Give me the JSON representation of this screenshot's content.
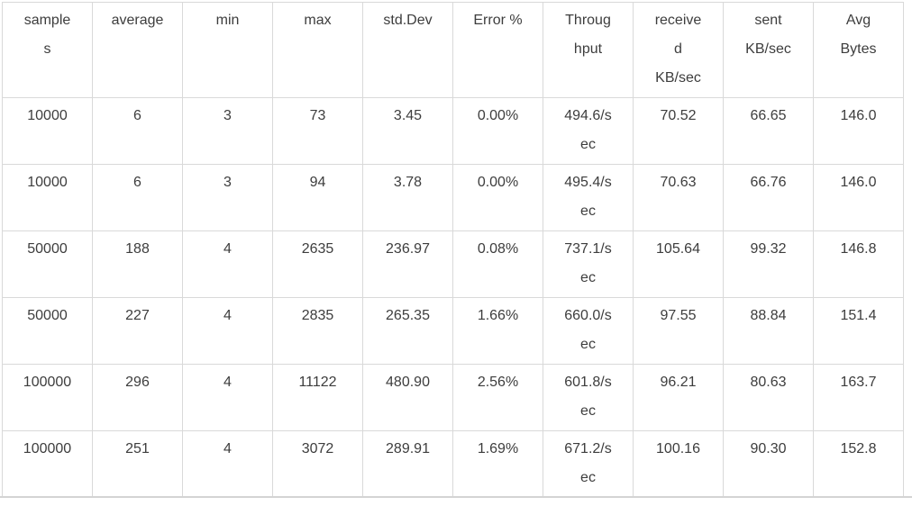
{
  "table": {
    "columns": [
      {
        "key": "samples",
        "label": "samples"
      },
      {
        "key": "average",
        "label": "average"
      },
      {
        "key": "min",
        "label": "min"
      },
      {
        "key": "max",
        "label": "max"
      },
      {
        "key": "std-dev",
        "label": "std.Dev"
      },
      {
        "key": "error-pct",
        "label": "Error %"
      },
      {
        "key": "throughput",
        "label": "Throughput"
      },
      {
        "key": "received-kb",
        "label": "received KB/sec"
      },
      {
        "key": "sent-kb",
        "label": "sent KB/sec"
      },
      {
        "key": "avg-bytes",
        "label": "Avg Bytes"
      }
    ],
    "rows": [
      [
        "10000",
        "6",
        "3",
        "73",
        "3.45",
        "0.00%",
        "494.6/sec",
        "70.52",
        "66.65",
        "146.0"
      ],
      [
        "10000",
        "6",
        "3",
        "94",
        "3.78",
        "0.00%",
        "495.4/sec",
        "70.63",
        "66.76",
        "146.0"
      ],
      [
        "50000",
        "188",
        "4",
        "2635",
        "236.97",
        "0.08%",
        "737.1/sec",
        "105.64",
        "99.32",
        "146.8"
      ],
      [
        "50000",
        "227",
        "4",
        "2835",
        "265.35",
        "1.66%",
        "660.0/sec",
        "97.55",
        "88.84",
        "151.4"
      ],
      [
        "100000",
        "296",
        "4",
        "11122",
        "480.90",
        "2.56%",
        "601.8/sec",
        "96.21",
        "80.63",
        "163.7"
      ],
      [
        "100000",
        "251",
        "4",
        "3072",
        "289.91",
        "1.69%",
        "671.2/sec",
        "100.16",
        "90.30",
        "152.8"
      ]
    ]
  },
  "colors": {
    "grid_border": "#d9d9d9",
    "text": "#3d3d3d",
    "bottom_rule": "#d4d4d4",
    "background": "#ffffff"
  }
}
